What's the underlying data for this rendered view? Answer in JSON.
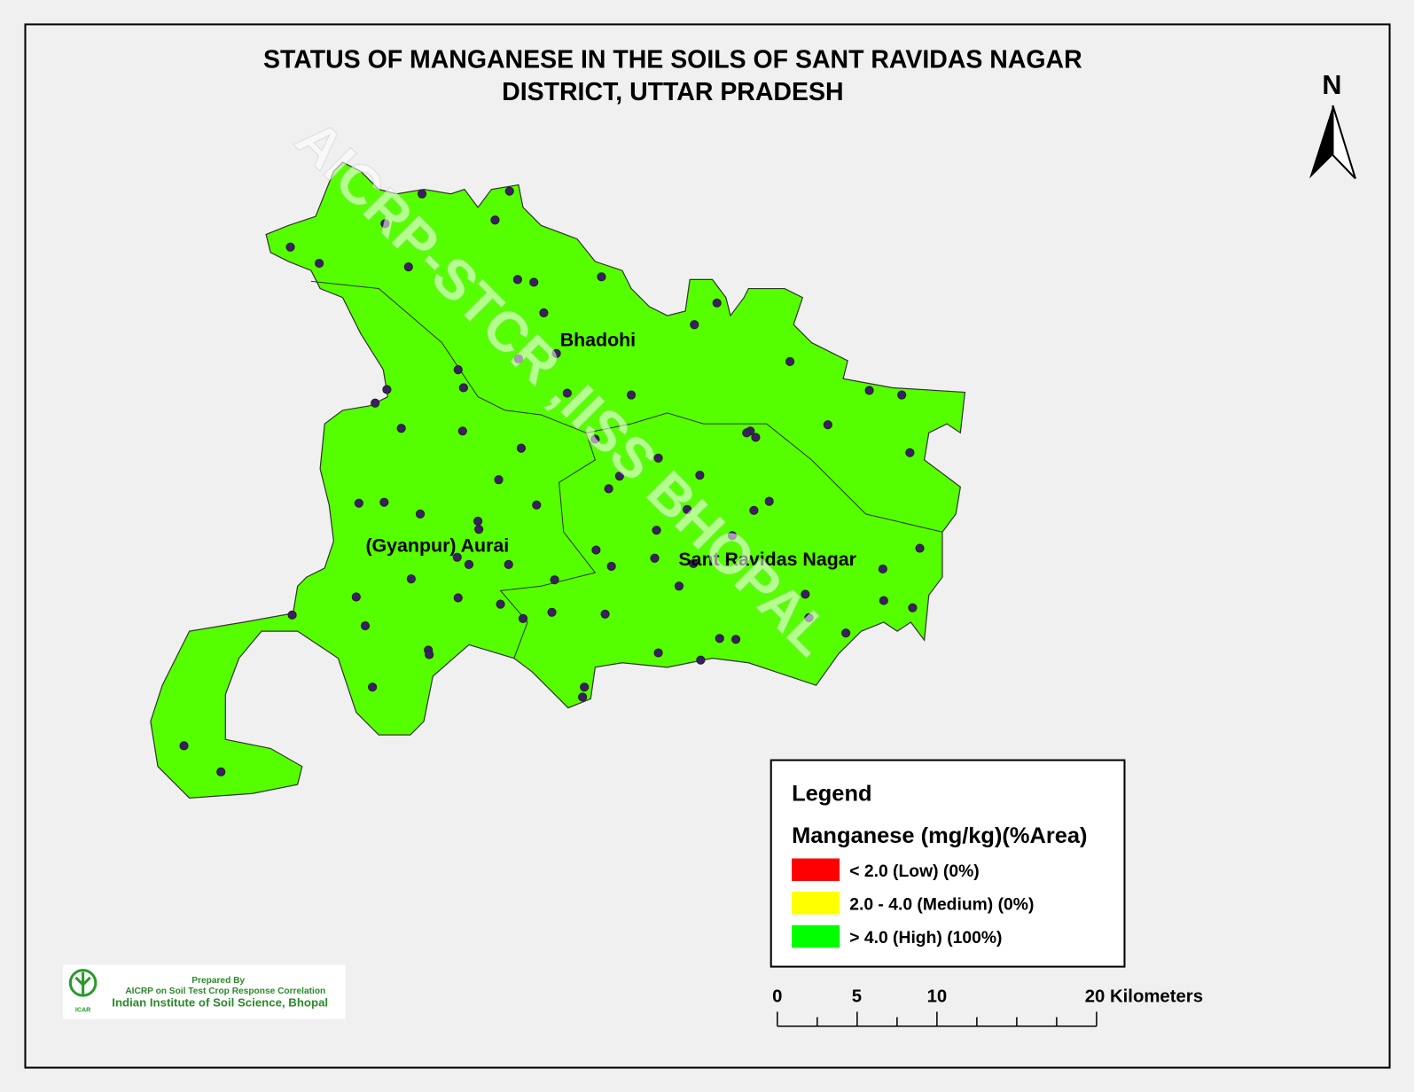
{
  "header": {
    "title_line1": "STATUS OF MANGANESE   IN THE  SOILS  OF SANT RAVIDAS NAGAR",
    "title_line2": "DISTRICT, UTTAR PRADESH"
  },
  "north_arrow": {
    "label": "N"
  },
  "watermark": "AICRP-STCR ,IISS BHOPAL",
  "regions": [
    {
      "label": "Bhadohi"
    },
    {
      "label": "(Gyanpur) Aurai"
    },
    {
      "label": "Sant Ravidas Nagar"
    }
  ],
  "legend": {
    "title": "Legend",
    "subtitle": "Manganese (mg/kg)(%Area)",
    "items": [
      {
        "label": "<  2.0 (Low) (0%)",
        "color": "#ff0000"
      },
      {
        "label": "2.0 - 4.0 (Medium) (0%)",
        "color": "#ffff00"
      },
      {
        "label": "> 4.0  (High) (100%)",
        "color": "#00ff00"
      }
    ]
  },
  "scale_bar": {
    "labels": [
      "0",
      "5",
      "10",
      "20 Kilometers"
    ]
  },
  "credit": {
    "line1": "Prepared By",
    "line2": "AICRP on Soil Test Crop Response Correlation",
    "line3": "Indian Institute of Soil Science, Bhopal",
    "logo_text": "ICAR"
  }
}
